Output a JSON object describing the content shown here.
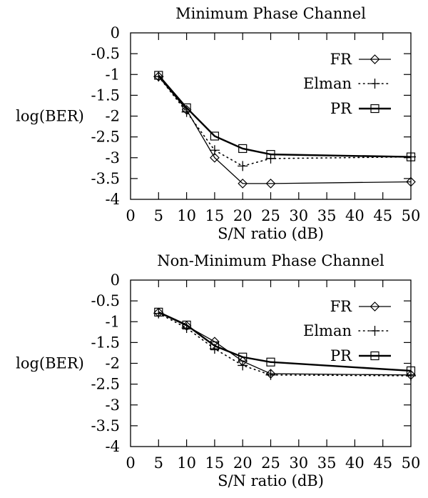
{
  "chart_data": [
    {
      "type": "line",
      "title": "Minimum Phase Channel",
      "xlabel": "S/N ratio (dB)",
      "ylabel": "log(BER)",
      "xlim": [
        0,
        50
      ],
      "ylim": [
        -4,
        0
      ],
      "xticks": [
        "0",
        "5",
        "10",
        "15",
        "20",
        "25",
        "30",
        "35",
        "40",
        "45",
        "50"
      ],
      "yticks": [
        "0",
        "-0.5",
        "-1",
        "-1.5",
        "-2",
        "-2.5",
        "-3",
        "-3.5",
        "-4"
      ],
      "grid": false,
      "legend_position": "top-right",
      "x": [
        5,
        10,
        15,
        20,
        25,
        50
      ],
      "series": [
        {
          "name": "FR",
          "marker": "diamond",
          "style": "solid",
          "values": [
            -1.05,
            -1.85,
            -3.0,
            -3.62,
            -3.62,
            -3.58
          ]
        },
        {
          "name": "Elman",
          "marker": "plus",
          "style": "dotted",
          "values": [
            -1.05,
            -1.9,
            -2.82,
            -3.2,
            -3.02,
            -2.98
          ]
        },
        {
          "name": "PR",
          "marker": "square",
          "style": "solid-thick",
          "values": [
            -1.02,
            -1.8,
            -2.48,
            -2.78,
            -2.92,
            -2.98
          ]
        }
      ]
    },
    {
      "type": "line",
      "title": "Non-Minimum Phase Channel",
      "xlabel": "S/N ratio (dB)",
      "ylabel": "log(BER)",
      "xlim": [
        0,
        50
      ],
      "ylim": [
        -4,
        0
      ],
      "xticks": [
        "0",
        "5",
        "10",
        "15",
        "20",
        "25",
        "30",
        "35",
        "40",
        "45",
        "50"
      ],
      "yticks": [
        "0",
        "-0.5",
        "-1",
        "-1.5",
        "-2",
        "-2.5",
        "-3",
        "-3.5",
        "-4"
      ],
      "grid": false,
      "legend_position": "top-right",
      "x": [
        5,
        10,
        15,
        20,
        25,
        50
      ],
      "series": [
        {
          "name": "FR",
          "marker": "diamond",
          "style": "solid",
          "values": [
            -0.78,
            -1.1,
            -1.48,
            -1.95,
            -2.25,
            -2.28
          ]
        },
        {
          "name": "Elman",
          "marker": "plus",
          "style": "dotted",
          "values": [
            -0.8,
            -1.15,
            -1.65,
            -2.05,
            -2.28,
            -2.3
          ]
        },
        {
          "name": "PR",
          "marker": "square",
          "style": "solid-thick",
          "values": [
            -0.77,
            -1.08,
            -1.58,
            -1.85,
            -1.97,
            -2.18
          ]
        }
      ]
    }
  ]
}
